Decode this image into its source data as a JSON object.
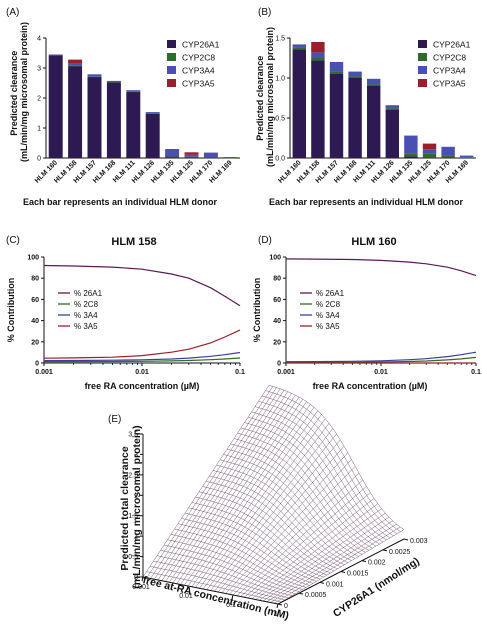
{
  "chart_data": [
    {
      "id": "A",
      "type": "bar",
      "stacked": true,
      "panel_label": "(A)",
      "ylabel": "Predicted clearance\n(mL/min/mg microsomal protein)",
      "xlabel": "Each bar represents an individual HLM donor",
      "ylim": [
        0,
        4
      ],
      "yticks": [
        "0",
        "1",
        "2",
        "3",
        "4"
      ],
      "categories": [
        "HLM 160",
        "HLM 158",
        "HLM 157",
        "HLM 168",
        "HLM 111",
        "HLM 126",
        "HLM 135",
        "HLM 125",
        "HLM 170",
        "HLM 169"
      ],
      "series": [
        {
          "name": "CYP26A1",
          "color": "#2d1a52",
          "values": [
            3.42,
            3.05,
            2.7,
            2.52,
            2.2,
            1.48,
            0.03,
            0.01,
            0.01,
            0.0
          ]
        },
        {
          "name": "CYP2C8",
          "color": "#2f6b2a",
          "values": [
            0.0,
            0.02,
            0.01,
            0.01,
            0.01,
            0.01,
            0.02,
            0.03,
            0.02,
            0.01
          ]
        },
        {
          "name": "CYP3A4",
          "color": "#4a4fb3",
          "values": [
            0.03,
            0.07,
            0.08,
            0.04,
            0.05,
            0.04,
            0.25,
            0.07,
            0.15,
            0.02
          ]
        },
        {
          "name": "CYP3A5",
          "color": "#9a1f2a",
          "values": [
            0.0,
            0.14,
            0.0,
            0.0,
            0.0,
            0.0,
            0.0,
            0.08,
            0.0,
            0.0
          ]
        }
      ]
    },
    {
      "id": "B",
      "type": "bar",
      "stacked": true,
      "panel_label": "(B)",
      "ylabel": "Predicted clearance\n(mL/min/mg microsomal protein)",
      "xlabel": "Each bar represents an individual HLM donor",
      "ylim": [
        0,
        1.5
      ],
      "yticks": [
        "0.0",
        "0.5",
        "1.0",
        "1.5"
      ],
      "categories": [
        "HLM 160",
        "HLM 158",
        "HLM 157",
        "HLM 168",
        "HLM 111",
        "HLM 126",
        "HLM 135",
        "HLM 125",
        "HLM 170",
        "HLM 169"
      ],
      "series": [
        {
          "name": "CYP26A1",
          "color": "#2d1a52",
          "values": [
            1.36,
            1.22,
            1.05,
            1.0,
            0.9,
            0.6,
            0.02,
            0.01,
            0.01,
            0.0
          ]
        },
        {
          "name": "CYP2C8",
          "color": "#2f6b2a",
          "values": [
            0.02,
            0.03,
            0.03,
            0.02,
            0.02,
            0.02,
            0.04,
            0.05,
            0.02,
            0.01
          ]
        },
        {
          "name": "CYP3A4",
          "color": "#4a4fb3",
          "values": [
            0.04,
            0.07,
            0.12,
            0.06,
            0.07,
            0.04,
            0.22,
            0.05,
            0.11,
            0.02
          ]
        },
        {
          "name": "CYP3A5",
          "color": "#9a1f2a",
          "values": [
            0.0,
            0.13,
            0.0,
            0.0,
            0.0,
            0.0,
            0.0,
            0.07,
            0.0,
            0.0
          ]
        }
      ]
    },
    {
      "id": "C",
      "type": "line",
      "panel_label": "(C)",
      "title": "HLM 158",
      "xlabel": "free RA concentration (µM)",
      "ylabel": "% Contribution",
      "xscale": "log",
      "xlim": [
        0.001,
        0.1
      ],
      "xticks": [
        "0.001",
        "0.01",
        "0.1"
      ],
      "ylim": [
        0,
        100
      ],
      "yticks": [
        "0",
        "20",
        "40",
        "60",
        "80",
        "100"
      ],
      "x": [
        0.001,
        0.002,
        0.005,
        0.01,
        0.02,
        0.03,
        0.05,
        0.07,
        0.1
      ],
      "series": [
        {
          "name": "% 26A1",
          "color": "#5a1a55",
          "values": [
            92,
            91.5,
            90.5,
            88.5,
            84,
            80,
            71,
            63,
            54
          ]
        },
        {
          "name": "% 2C8",
          "color": "#2f6b2a",
          "values": [
            1.3,
            1.3,
            1.4,
            1.6,
            2.0,
            2.4,
            3.1,
            3.8,
            4.7
          ]
        },
        {
          "name": "% 3A4",
          "color": "#3b3f9a",
          "values": [
            2.3,
            2.4,
            2.6,
            3.0,
            3.8,
            4.6,
            6.3,
            7.8,
            9.9
          ]
        },
        {
          "name": "% 3A5",
          "color": "#9a1f2a",
          "values": [
            4.5,
            4.8,
            5.5,
            7.0,
            10.2,
            13.0,
            19.0,
            24.5,
            31.0
          ]
        }
      ],
      "legend_position": "middle-left"
    },
    {
      "id": "D",
      "type": "line",
      "panel_label": "(D)",
      "title": "HLM 160",
      "xlabel": "free RA concentration (µM)",
      "ylabel": "% Contribution",
      "xscale": "log",
      "xlim": [
        0.001,
        0.1
      ],
      "xticks": [
        "0.001",
        "0.01",
        "0.1"
      ],
      "ylim": [
        0,
        100
      ],
      "yticks": [
        "0",
        "20",
        "40",
        "60",
        "80",
        "100"
      ],
      "x": [
        0.001,
        0.002,
        0.005,
        0.01,
        0.02,
        0.03,
        0.05,
        0.07,
        0.1
      ],
      "series": [
        {
          "name": "% 26A1",
          "color": "#5a1a55",
          "values": [
            98.2,
            98.0,
            97.6,
            96.8,
            95.2,
            93.6,
            90.4,
            87.0,
            82.5
          ]
        },
        {
          "name": "% 2C8",
          "color": "#2f6b2a",
          "values": [
            0.5,
            0.55,
            0.7,
            0.9,
            1.4,
            1.9,
            2.9,
            3.9,
            5.3
          ]
        },
        {
          "name": "% 3A4",
          "color": "#3b3f9a",
          "values": [
            1.2,
            1.3,
            1.6,
            2.1,
            3.1,
            4.1,
            6.0,
            7.8,
            10.2
          ]
        },
        {
          "name": "% 3A5",
          "color": "#9a1f2a",
          "values": [
            0,
            0,
            0,
            0,
            0,
            0,
            0,
            0,
            0
          ]
        }
      ],
      "legend_position": "middle-left"
    },
    {
      "id": "E",
      "type": "surface",
      "panel_label": "(E)",
      "zlabel": "Predicted total clearance\n(mL/min/mg microsomal protein)",
      "xlabel": "free at-RA concentration (mM)",
      "ylabel": "CYP26A1 (nmol/mg)",
      "zticks": [
        "0",
        "0.5",
        "1",
        "1.5",
        "2",
        "2.5",
        "3",
        "3.5"
      ],
      "xticks": [
        "0.001",
        "0.01",
        "0.1",
        "1"
      ],
      "yticks": [
        "0",
        "0.0005",
        "0.001",
        "0.0015",
        "0.002",
        "0.0025",
        "0.003"
      ],
      "xscale": "log",
      "xlim": [
        0.001,
        1
      ],
      "ylim": [
        0,
        0.003
      ],
      "zlim": [
        0,
        3.5
      ]
    }
  ]
}
